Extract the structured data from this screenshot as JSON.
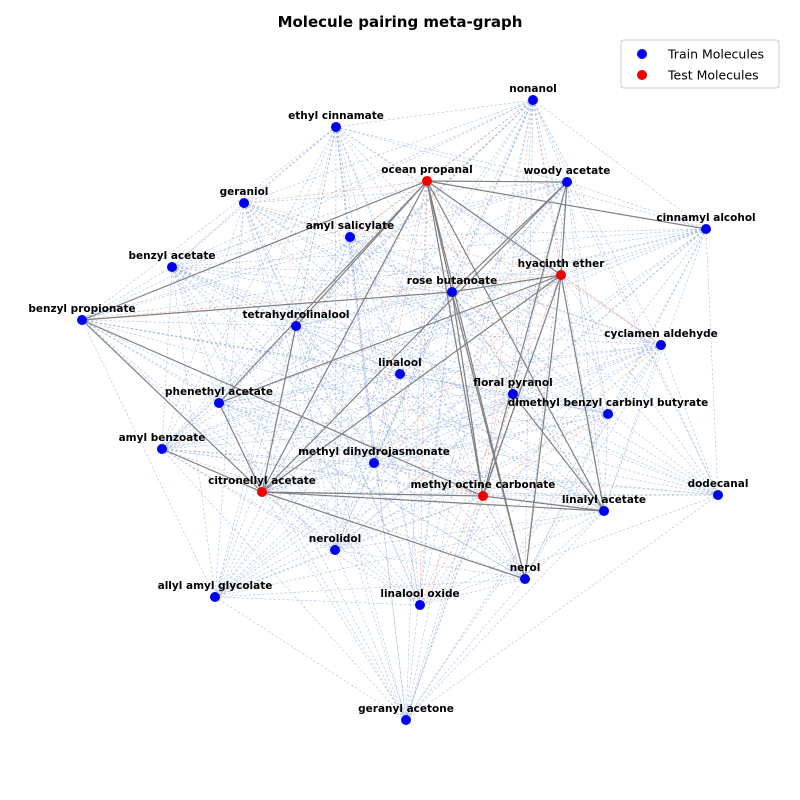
{
  "title": "Molecule pairing meta-graph",
  "legend": {
    "placement": "top-right",
    "items": [
      {
        "label": "Train Molecules",
        "color": "#0000ee"
      },
      {
        "label": "Test Molecules",
        "color": "#ee0000"
      }
    ]
  },
  "colors": {
    "train": "#0000ee",
    "test": "#ee0000",
    "train_edge": "#8aa8dd",
    "test_edge": "#f08a6a",
    "pair_edge": "#808080"
  },
  "nodes": [
    {
      "id": "nonanol",
      "label": "nonanol",
      "group": "train"
    },
    {
      "id": "ethyl_cinnamate",
      "label": "ethyl cinnamate",
      "group": "train"
    },
    {
      "id": "ocean_propanal",
      "label": "ocean propanal",
      "group": "test"
    },
    {
      "id": "woody_acetate",
      "label": "woody acetate",
      "group": "train"
    },
    {
      "id": "geraniol",
      "label": "geraniol",
      "group": "train"
    },
    {
      "id": "cinnamyl_alcohol",
      "label": "cinnamyl alcohol",
      "group": "train"
    },
    {
      "id": "amyl_salicylate",
      "label": "amyl salicylate",
      "group": "train"
    },
    {
      "id": "benzyl_acetate",
      "label": "benzyl acetate",
      "group": "train"
    },
    {
      "id": "hyacinth_ether",
      "label": "hyacinth ether",
      "group": "test"
    },
    {
      "id": "rose_butanoate",
      "label": "rose butanoate",
      "group": "train"
    },
    {
      "id": "benzyl_propionate",
      "label": "benzyl propionate",
      "group": "train"
    },
    {
      "id": "tetrahydrolinalool",
      "label": "tetrahydrolinalool",
      "group": "train"
    },
    {
      "id": "cyclamen_aldehyde",
      "label": "cyclamen aldehyde",
      "group": "train"
    },
    {
      "id": "linalool",
      "label": "linalool",
      "group": "train"
    },
    {
      "id": "floral_pyranol",
      "label": "floral pyranol",
      "group": "train"
    },
    {
      "id": "phenethyl_acetate",
      "label": "phenethyl acetate",
      "group": "train"
    },
    {
      "id": "dimethyl_benzyl_carbinyl_butyrate",
      "label": "dimethyl benzyl carbinyl butyrate",
      "group": "train"
    },
    {
      "id": "amyl_benzoate",
      "label": "amyl benzoate",
      "group": "train"
    },
    {
      "id": "methyl_dihydrojasmonate",
      "label": "methyl dihydrojasmonate",
      "group": "train"
    },
    {
      "id": "citronellyl_acetate",
      "label": "citronellyl acetate",
      "group": "test"
    },
    {
      "id": "methyl_octine_carbonate",
      "label": "methyl octine carbonate",
      "group": "test"
    },
    {
      "id": "dodecanal",
      "label": "dodecanal",
      "group": "train"
    },
    {
      "id": "linalyl_acetate",
      "label": "linalyl acetate",
      "group": "train"
    },
    {
      "id": "nerolidol",
      "label": "nerolidol",
      "group": "train"
    },
    {
      "id": "nerol",
      "label": "nerol",
      "group": "train"
    },
    {
      "id": "allyl_amyl_glycolate",
      "label": "allyl amyl glycolate",
      "group": "train"
    },
    {
      "id": "linalool_oxide",
      "label": "linalool oxide",
      "group": "train"
    },
    {
      "id": "geranyl_acetone",
      "label": "geranyl acetone",
      "group": "train"
    }
  ],
  "pair_edges": [
    [
      "ocean_propanal",
      "woody_acetate"
    ],
    [
      "ocean_propanal",
      "cinnamyl_alcohol"
    ],
    [
      "ocean_propanal",
      "hyacinth_ether"
    ],
    [
      "ocean_propanal",
      "rose_butanoate"
    ],
    [
      "ocean_propanal",
      "tetrahydrolinalool"
    ],
    [
      "ocean_propanal",
      "phenethyl_acetate"
    ],
    [
      "ocean_propanal",
      "citronellyl_acetate"
    ],
    [
      "ocean_propanal",
      "methyl_octine_carbonate"
    ],
    [
      "ocean_propanal",
      "nerol"
    ],
    [
      "ocean_propanal",
      "benzyl_propionate"
    ],
    [
      "ocean_propanal",
      "linalyl_acetate"
    ],
    [
      "woody_acetate",
      "hyacinth_ether"
    ],
    [
      "woody_acetate",
      "methyl_octine_carbonate"
    ],
    [
      "woody_acetate",
      "citronellyl_acetate"
    ],
    [
      "woody_acetate",
      "rose_butanoate"
    ],
    [
      "hyacinth_ether",
      "rose_butanoate"
    ],
    [
      "hyacinth_ether",
      "nerol"
    ],
    [
      "hyacinth_ether",
      "methyl_octine_carbonate"
    ],
    [
      "hyacinth_ether",
      "linalyl_acetate"
    ],
    [
      "hyacinth_ether",
      "citronellyl_acetate"
    ],
    [
      "hyacinth_ether",
      "phenethyl_acetate"
    ],
    [
      "benzyl_propionate",
      "rose_butanoate"
    ],
    [
      "benzyl_propionate",
      "citronellyl_acetate"
    ],
    [
      "benzyl_propionate",
      "methyl_octine_carbonate"
    ],
    [
      "tetrahydrolinalool",
      "citronellyl_acetate"
    ],
    [
      "phenethyl_acetate",
      "citronellyl_acetate"
    ],
    [
      "amyl_benzoate",
      "citronellyl_acetate"
    ],
    [
      "citronellyl_acetate",
      "methyl_octine_carbonate"
    ],
    [
      "citronellyl_acetate",
      "linalyl_acetate"
    ],
    [
      "citronellyl_acetate",
      "nerol"
    ],
    [
      "methyl_octine_carbonate",
      "linalyl_acetate"
    ],
    [
      "rose_butanoate",
      "methyl_octine_carbonate"
    ],
    [
      "floral_pyranol",
      "linalyl_acetate"
    ],
    [
      "rose_butanoate",
      "nerol"
    ]
  ]
}
